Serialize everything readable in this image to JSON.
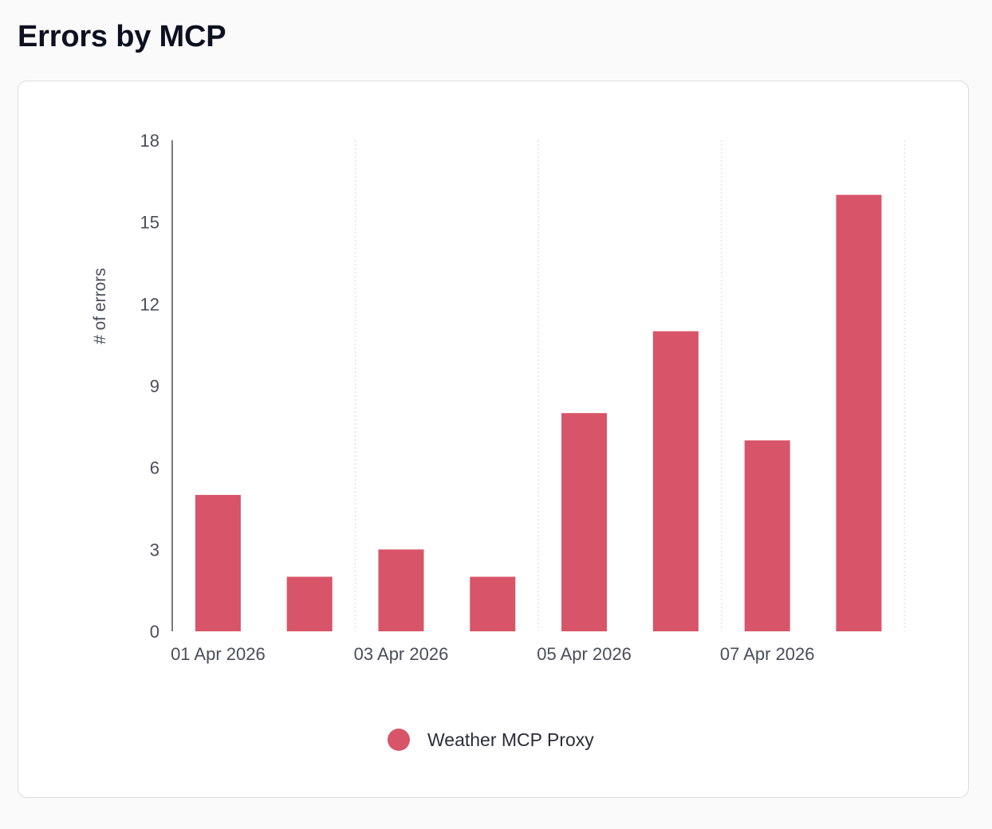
{
  "page": {
    "title": "Errors by MCP"
  },
  "colors": {
    "bar": "#d85468",
    "axis": "#4a4e5a",
    "grid": "#e3e3e3"
  },
  "chart_data": {
    "type": "bar",
    "title": "",
    "xlabel": "",
    "ylabel": "# of errors",
    "ylim": [
      0,
      18
    ],
    "yticks": [
      0,
      3,
      6,
      9,
      12,
      15,
      18
    ],
    "x": [
      "2026-04-01",
      "2026-04-02",
      "2026-04-03",
      "2026-04-04",
      "2026-04-05",
      "2026-04-06",
      "2026-04-07",
      "2026-04-08"
    ],
    "xtick_labels": [
      "01 Apr 2026",
      "03 Apr 2026",
      "05 Apr 2026",
      "07 Apr 2026"
    ],
    "xtick_positions": [
      "2026-04-01",
      "2026-04-03",
      "2026-04-05",
      "2026-04-07"
    ],
    "series": [
      {
        "name": "Weather MCP Proxy",
        "values": [
          5,
          2,
          3,
          2,
          8,
          11,
          7,
          16
        ]
      }
    ],
    "grid": "vertical dotted",
    "legend": "bottom-center"
  }
}
